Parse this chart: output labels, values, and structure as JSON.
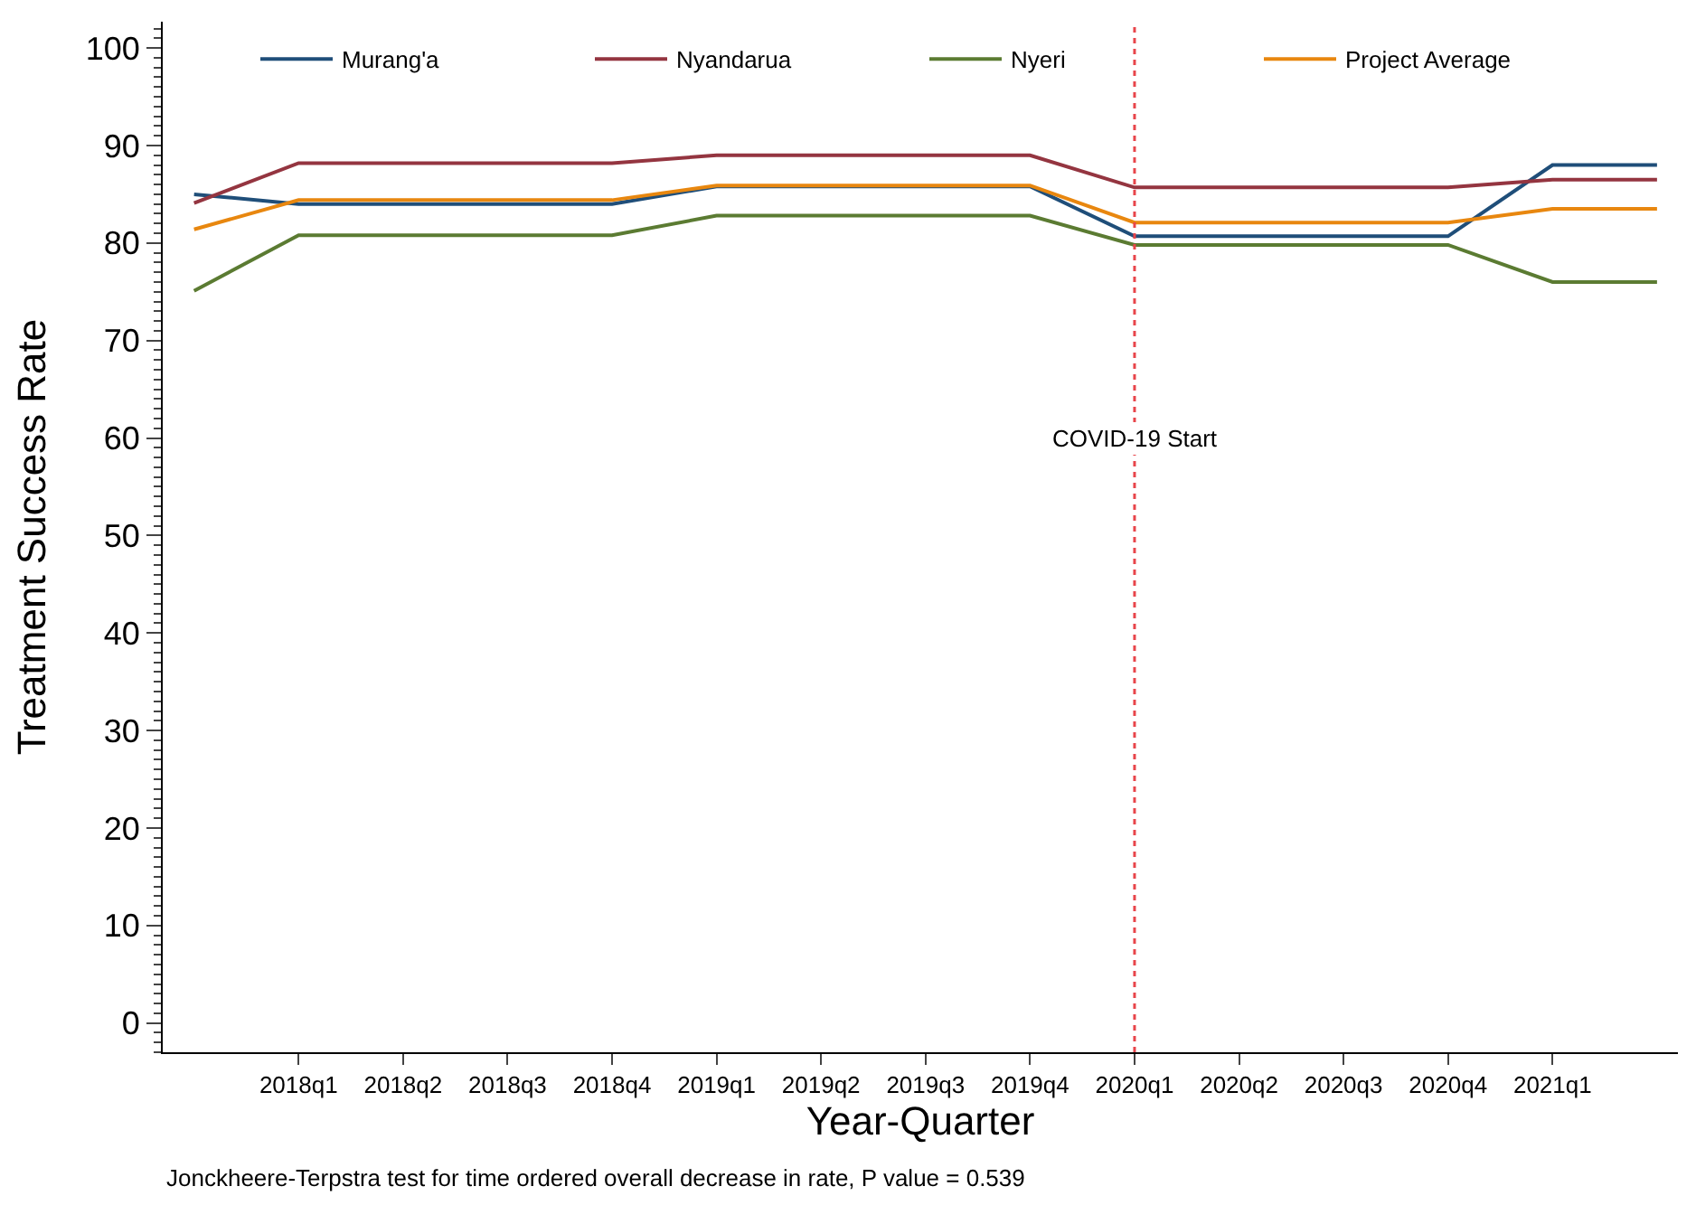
{
  "chart_data": {
    "type": "line",
    "xlabel": "Year-Quarter",
    "ylabel": "Treatment Success Rate",
    "categories": [
      null,
      "2018q1",
      "2018q2",
      "2018q3",
      "2018q4",
      "2019q1",
      "2019q2",
      "2019q3",
      "2019q4",
      "2020q1",
      "2020q2",
      "2020q3",
      "2020q4",
      "2021q1",
      null
    ],
    "series": [
      {
        "name": "Murang'a",
        "color": "#1f4e79",
        "values": [
          85.0,
          84.0,
          84.0,
          84.0,
          84.0,
          85.8,
          85.8,
          85.8,
          85.8,
          80.7,
          80.7,
          80.7,
          80.7,
          88.0,
          88.0
        ]
      },
      {
        "name": "Nyandarua",
        "color": "#943540",
        "values": [
          84.1,
          88.2,
          88.2,
          88.2,
          88.2,
          89.0,
          89.0,
          89.0,
          89.0,
          85.7,
          85.7,
          85.7,
          85.7,
          86.5,
          86.5
        ]
      },
      {
        "name": "Nyeri",
        "color": "#5b7b32",
        "values": [
          75.1,
          80.8,
          80.8,
          80.8,
          80.8,
          82.8,
          82.8,
          82.8,
          82.8,
          79.8,
          79.8,
          79.8,
          79.8,
          76.0,
          76.0
        ]
      },
      {
        "name": "Project Average",
        "color": "#e8870f",
        "values": [
          81.4,
          84.4,
          84.4,
          84.4,
          84.4,
          85.9,
          85.9,
          85.9,
          85.9,
          82.1,
          82.1,
          82.1,
          82.1,
          83.5,
          83.5
        ]
      }
    ],
    "ylim": [
      -3,
      102.7
    ],
    "yticks": [
      0,
      10,
      20,
      30,
      40,
      50,
      60,
      70,
      80,
      90,
      100
    ],
    "ref_lines": [
      {
        "axis": "x",
        "value": "2020q1",
        "color": "#e8454a",
        "line_style": "dotted"
      }
    ],
    "annotations": [
      {
        "text": "COVID-19 Start",
        "x": "2020q1",
        "y": 60
      },
      "Jonckheere-Terpstra test for time ordered overall decrease in rate, P value = 0.539"
    ],
    "legend": "top",
    "marker": "none",
    "line_style": "solid"
  }
}
